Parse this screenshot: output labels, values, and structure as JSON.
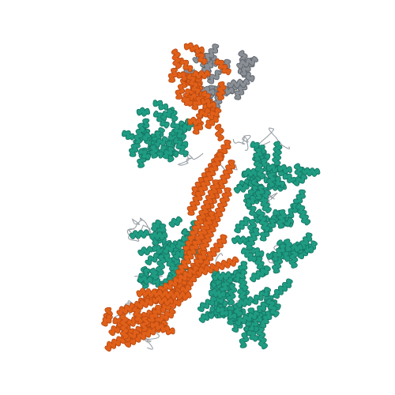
{
  "image": {
    "kind": "protein-structure-cartoon",
    "background": "#ffffff",
    "colors": {
      "orange_chain": "#e0601a",
      "orange_dark": "#b8480f",
      "teal_chain": "#1f9c82",
      "teal_dark": "#157564",
      "grey_chain": "#8a8f96",
      "grey_dark": "#5c6168",
      "coil": "#9aa0a6"
    }
  }
}
